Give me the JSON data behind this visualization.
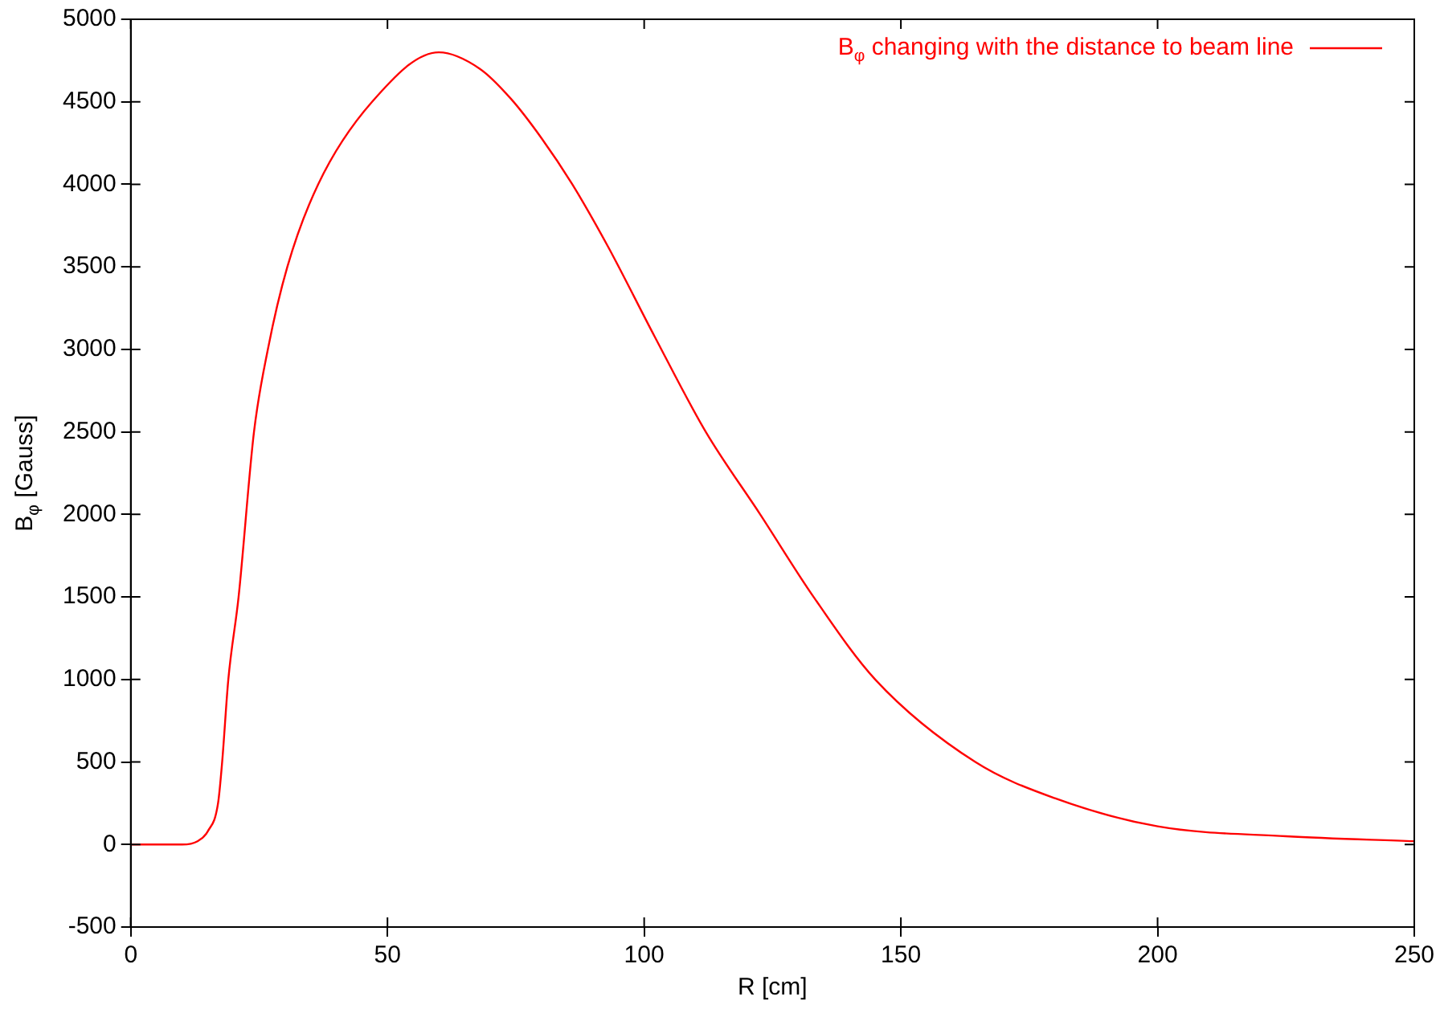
{
  "chart_data": {
    "type": "line",
    "xlabel": "R [cm]",
    "ylabel": "B$_{φ}$ [Gauss]",
    "legend": "top right",
    "grid": false,
    "marker": "none",
    "line_style": "solid",
    "xlim": [
      0,
      250
    ],
    "xticks": [
      0,
      50,
      100,
      150,
      200,
      250
    ],
    "ylim": [
      -500,
      5000
    ],
    "yticks": [
      -500,
      0,
      500,
      1000,
      1500,
      2000,
      2500,
      3000,
      3500,
      4000,
      4500,
      5000
    ],
    "series": [
      {
        "name": "B$_{φ}$ changing with the distance to beam line",
        "color": "#ff0000",
        "x": [
          0,
          5,
          10,
          13,
          15,
          17,
          17.8,
          19,
          21,
          24,
          26.7,
          30.5,
          36.5,
          47,
          60,
          68,
          74,
          80,
          86,
          93,
          102,
          112,
          122.6,
          133,
          145,
          164.5,
          180,
          200,
          225,
          250
        ],
        "values": [
          0,
          0,
          0,
          20,
          80,
          250,
          500,
          1000,
          1500,
          2500,
          3000,
          3500,
          4000,
          4500,
          4800,
          4700,
          4520,
          4280,
          4000,
          3620,
          3080,
          2500,
          2000,
          1500,
          1000,
          500,
          280,
          110,
          50,
          20
        ]
      }
    ]
  }
}
